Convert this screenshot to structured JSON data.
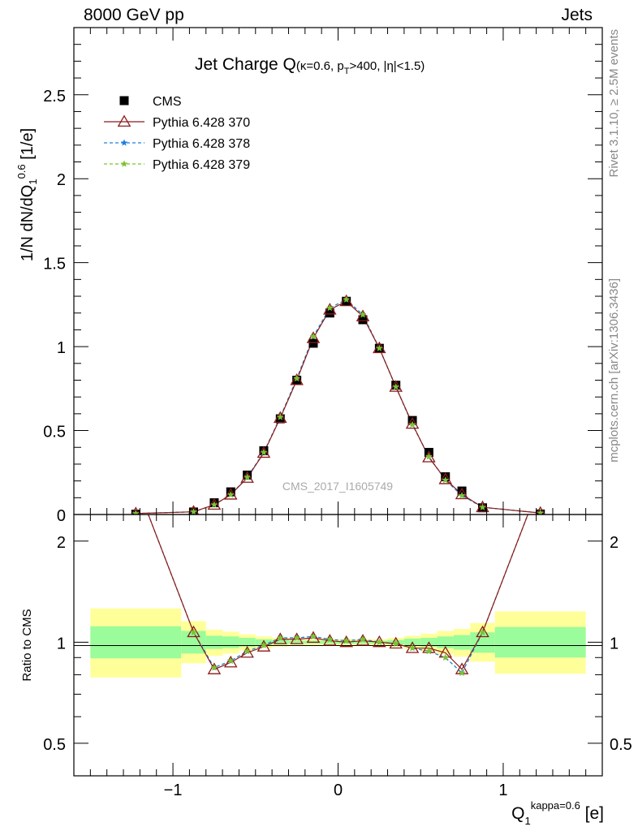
{
  "header": {
    "left": "8000 GeV pp",
    "right": "Jets"
  },
  "side_labels": {
    "rivet": "Rivet 3.1.10, ≥ 2.5M events",
    "mcplots": "mcplots.cern.ch [arXiv:1306.3436]"
  },
  "chart_data": {
    "type": "scatter",
    "title": "Jet Charge Q(κ=0.6, pT>400, |η|<1.5)",
    "title_parts": {
      "main": "Jet Charge Q",
      "paren_pre": "(κ=0.6, p",
      "sub": "T",
      "paren_post": ">400, |η|<1.5)"
    },
    "watermark": "CMS_2017_I1605749",
    "ylabel": "1/N dN/dQ1^0.6 [1/e]",
    "ylabel_parts": {
      "pre": "1/N dN/dQ",
      "sub": "1",
      "sup": "0.6",
      "post": " [1/e]"
    },
    "xlabel": "Q1^kappa=0.6 [e]",
    "xlabel_parts": {
      "pre": "Q",
      "sub": "1",
      "sup": "kappa=0.6",
      "post": " [e]"
    },
    "ratio_ylabel": "Ratio to CMS",
    "xlim": [
      -1.6,
      1.6
    ],
    "ylim": [
      0,
      2.9
    ],
    "ratio_ylim": [
      0.4,
      2.4
    ],
    "ratio_log": true,
    "x_ticks": [
      -1,
      0,
      1
    ],
    "x_tick_labels": [
      "−1",
      "0",
      "1"
    ],
    "y_ticks": [
      0,
      0.5,
      1,
      1.5,
      2,
      2.5
    ],
    "y_tick_labels": [
      "0",
      "0.5",
      "1",
      "1.5",
      "2",
      "2.5"
    ],
    "ratio_ticks": [
      0.5,
      1,
      2
    ],
    "ratio_tick_labels": [
      "0.5",
      "1",
      "2"
    ],
    "legend_position": "top-left",
    "bins": [
      {
        "lo": -1.5,
        "hi": -0.95
      },
      {
        "lo": -0.95,
        "hi": -0.8
      },
      {
        "lo": -0.8,
        "hi": -0.7
      },
      {
        "lo": -0.7,
        "hi": -0.6
      },
      {
        "lo": -0.6,
        "hi": -0.5
      },
      {
        "lo": -0.5,
        "hi": -0.4
      },
      {
        "lo": -0.4,
        "hi": -0.3
      },
      {
        "lo": -0.3,
        "hi": -0.2
      },
      {
        "lo": -0.2,
        "hi": -0.1
      },
      {
        "lo": -0.1,
        "hi": 0.0
      },
      {
        "lo": 0.0,
        "hi": 0.1
      },
      {
        "lo": 0.1,
        "hi": 0.2
      },
      {
        "lo": 0.2,
        "hi": 0.3
      },
      {
        "lo": 0.3,
        "hi": 0.4
      },
      {
        "lo": 0.4,
        "hi": 0.5
      },
      {
        "lo": 0.5,
        "hi": 0.6
      },
      {
        "lo": 0.6,
        "hi": 0.7
      },
      {
        "lo": 0.7,
        "hi": 0.8
      },
      {
        "lo": 0.8,
        "hi": 0.95
      },
      {
        "lo": 0.95,
        "hi": 1.5
      }
    ],
    "x": [
      -1.225,
      -0.875,
      -0.75,
      -0.65,
      -0.55,
      -0.45,
      -0.35,
      -0.25,
      -0.15,
      -0.05,
      0.05,
      0.15,
      0.25,
      0.35,
      0.45,
      0.55,
      0.65,
      0.75,
      0.875,
      1.225
    ],
    "series": [
      {
        "name": "CMS",
        "color": "#000000",
        "marker": "square",
        "values": [
          0.002,
          0.015,
          0.07,
          0.135,
          0.235,
          0.38,
          0.57,
          0.8,
          1.02,
          1.2,
          1.27,
          1.16,
          0.99,
          0.77,
          0.56,
          0.37,
          0.225,
          0.14,
          0.04,
          0.003
        ],
        "ratio": [
          1,
          1,
          1,
          1,
          1,
          1,
          1,
          1,
          1,
          1,
          1,
          1,
          1,
          1,
          1,
          1,
          1,
          1,
          1,
          1
        ]
      },
      {
        "name": "Pythia 6.428 370",
        "color": "#8b1a1a",
        "marker": "triangle-open",
        "dash": "",
        "values": [
          0.006,
          0.016,
          0.058,
          0.118,
          0.218,
          0.367,
          0.575,
          0.8,
          1.05,
          1.22,
          1.27,
          1.18,
          0.99,
          0.76,
          0.54,
          0.34,
          0.21,
          0.12,
          0.043,
          0.009
        ],
        "ratio": [
          3.0,
          1.07,
          0.83,
          0.87,
          0.93,
          0.97,
          1.02,
          1.02,
          1.03,
          1.01,
          1.0,
          1.01,
          1.0,
          0.99,
          0.96,
          0.96,
          0.93,
          0.83,
          1.07,
          3.0
        ]
      },
      {
        "name": "Pythia 6.428 378",
        "color": "#1e7fe0",
        "marker": "star",
        "dash": "4,3",
        "values": [
          0.006,
          0.016,
          0.058,
          0.118,
          0.222,
          0.37,
          0.58,
          0.81,
          1.06,
          1.23,
          1.28,
          1.19,
          0.99,
          0.76,
          0.535,
          0.345,
          0.205,
          0.113,
          0.043,
          0.009
        ],
        "ratio": [
          3.0,
          1.07,
          0.84,
          0.88,
          0.94,
          0.98,
          1.03,
          1.03,
          1.04,
          1.02,
          1.01,
          1.02,
          1.0,
          0.99,
          0.96,
          0.94,
          0.9,
          0.81,
          1.07,
          3.0
        ]
      },
      {
        "name": "Pythia 6.428 379",
        "color": "#7dc42b",
        "marker": "star",
        "dash": "4,3",
        "values": [
          0.006,
          0.016,
          0.058,
          0.118,
          0.222,
          0.37,
          0.58,
          0.81,
          1.06,
          1.23,
          1.28,
          1.19,
          0.99,
          0.76,
          0.535,
          0.345,
          0.205,
          0.113,
          0.043,
          0.009
        ],
        "ratio": [
          3.0,
          1.07,
          0.84,
          0.88,
          0.94,
          0.98,
          1.03,
          1.03,
          1.04,
          1.02,
          1.01,
          1.02,
          1.0,
          0.99,
          0.96,
          0.94,
          0.9,
          0.81,
          1.07,
          3.0
        ]
      }
    ],
    "uncertainty_bands": {
      "inner_color": "#9afc9a",
      "outer_color": "#ffff99",
      "inner_lo": [
        0.895,
        0.925,
        0.955,
        0.96,
        0.97,
        0.98,
        0.985,
        0.99,
        0.99,
        0.99,
        0.99,
        0.99,
        0.99,
        0.985,
        0.975,
        0.97,
        0.96,
        0.95,
        0.93,
        0.9
      ],
      "inner_hi": [
        1.115,
        1.08,
        1.045,
        1.04,
        1.03,
        1.02,
        1.015,
        1.01,
        1.01,
        1.01,
        1.01,
        1.01,
        1.01,
        1.015,
        1.025,
        1.03,
        1.04,
        1.05,
        1.07,
        1.11
      ],
      "outer_lo": [
        0.785,
        0.865,
        0.91,
        0.925,
        0.945,
        0.96,
        0.97,
        0.98,
        0.98,
        0.98,
        0.98,
        0.98,
        0.98,
        0.97,
        0.955,
        0.94,
        0.92,
        0.905,
        0.875,
        0.805
      ],
      "outer_hi": [
        1.26,
        1.155,
        1.09,
        1.075,
        1.055,
        1.04,
        1.03,
        1.02,
        1.02,
        1.02,
        1.02,
        1.02,
        1.02,
        1.03,
        1.045,
        1.06,
        1.08,
        1.095,
        1.14,
        1.235
      ]
    }
  }
}
